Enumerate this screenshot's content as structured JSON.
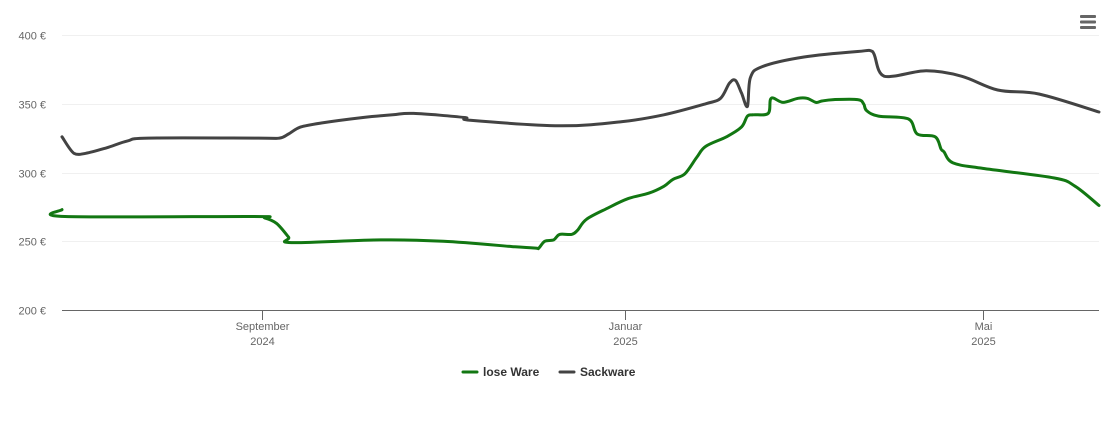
{
  "colors": {
    "lose": "#127712",
    "sack": "#434343"
  },
  "menu": {
    "icon": "hamburger-menu-icon"
  },
  "chart_data": {
    "type": "line",
    "xlim": [
      "2024-06-26",
      "2025-06-09"
    ],
    "ylim": [
      200,
      400
    ],
    "y_ticks": [
      {
        "value": 400,
        "label": "400 €"
      },
      {
        "value": 350,
        "label": "350 €"
      },
      {
        "value": 300,
        "label": "300 €"
      },
      {
        "value": 250,
        "label": "250 €"
      },
      {
        "value": 200,
        "label": "200 €"
      }
    ],
    "x_ticks": [
      {
        "date": "2024-09-01",
        "label": "September",
        "sub": "2024"
      },
      {
        "date": "2025-01-01",
        "label": "Januar",
        "sub": "2025"
      },
      {
        "date": "2025-05-01",
        "label": "Mai",
        "sub": "2025"
      }
    ],
    "grid": true,
    "legend_position": "bottom-center",
    "series": [
      {
        "name": "lose Ware",
        "color": "#127712",
        "points": [
          [
            "2024-06-26",
            273
          ],
          [
            "2024-06-27",
            268
          ],
          [
            "2024-08-29",
            268
          ],
          [
            "2024-09-02",
            267
          ],
          [
            "2024-09-06",
            263
          ],
          [
            "2024-09-10",
            253
          ],
          [
            "2024-09-11",
            249
          ],
          [
            "2024-10-11",
            251
          ],
          [
            "2024-11-01",
            250
          ],
          [
            "2024-11-25",
            246
          ],
          [
            "2024-12-02",
            245
          ],
          [
            "2024-12-03",
            245
          ],
          [
            "2024-12-05",
            250
          ],
          [
            "2024-12-08",
            251
          ],
          [
            "2024-12-10",
            255
          ],
          [
            "2024-12-14",
            255
          ],
          [
            "2024-12-16",
            258
          ],
          [
            "2024-12-19",
            266
          ],
          [
            "2024-12-26",
            274
          ],
          [
            "2025-01-02",
            281
          ],
          [
            "2025-01-09",
            285
          ],
          [
            "2025-01-14",
            290
          ],
          [
            "2025-01-17",
            295
          ],
          [
            "2025-01-21",
            299
          ],
          [
            "2025-01-25",
            311
          ],
          [
            "2025-01-28",
            319
          ],
          [
            "2025-02-04",
            326
          ],
          [
            "2025-02-09",
            333
          ],
          [
            "2025-02-11",
            341
          ],
          [
            "2025-02-13",
            342
          ],
          [
            "2025-02-18",
            343
          ],
          [
            "2025-02-19",
            354
          ],
          [
            "2025-02-23",
            351
          ],
          [
            "2025-02-28",
            354
          ],
          [
            "2025-03-03",
            354
          ],
          [
            "2025-03-06",
            351
          ],
          [
            "2025-03-08",
            352
          ],
          [
            "2025-03-12",
            353
          ],
          [
            "2025-03-20",
            353
          ],
          [
            "2025-03-22",
            350
          ],
          [
            "2025-03-23",
            345
          ],
          [
            "2025-03-27",
            341
          ],
          [
            "2025-04-06",
            339
          ],
          [
            "2025-04-09",
            328
          ],
          [
            "2025-04-15",
            326
          ],
          [
            "2025-04-17",
            317
          ],
          [
            "2025-04-18",
            315
          ],
          [
            "2025-04-21",
            307
          ],
          [
            "2025-05-01",
            303
          ],
          [
            "2025-05-25",
            296
          ],
          [
            "2025-06-01",
            290
          ],
          [
            "2025-06-09",
            276
          ]
        ]
      },
      {
        "name": "Sackware",
        "color": "#434343",
        "points": [
          [
            "2024-06-26",
            326
          ],
          [
            "2024-06-30",
            314
          ],
          [
            "2024-07-04",
            314
          ],
          [
            "2024-07-11",
            318
          ],
          [
            "2024-07-18",
            323
          ],
          [
            "2024-07-25",
            325
          ],
          [
            "2024-08-31",
            325
          ],
          [
            "2024-09-07",
            325
          ],
          [
            "2024-09-10",
            328
          ],
          [
            "2024-09-14",
            333
          ],
          [
            "2024-09-21",
            336
          ],
          [
            "2024-10-05",
            340
          ],
          [
            "2024-10-15",
            342
          ],
          [
            "2024-10-22",
            343
          ],
          [
            "2024-11-08",
            340
          ],
          [
            "2024-11-10",
            338
          ],
          [
            "2024-12-10",
            334
          ],
          [
            "2024-12-31",
            337
          ],
          [
            "2025-01-14",
            342
          ],
          [
            "2025-01-28",
            350
          ],
          [
            "2025-02-02",
            354
          ],
          [
            "2025-02-05",
            365
          ],
          [
            "2025-02-07",
            367
          ],
          [
            "2025-02-09",
            358
          ],
          [
            "2025-02-11",
            348
          ],
          [
            "2025-02-12",
            369
          ],
          [
            "2025-02-16",
            377
          ],
          [
            "2025-03-02",
            384
          ],
          [
            "2025-03-20",
            388
          ],
          [
            "2025-03-25",
            388
          ],
          [
            "2025-03-29",
            370
          ],
          [
            "2025-04-12",
            374
          ],
          [
            "2025-04-24",
            370
          ],
          [
            "2025-05-06",
            360
          ],
          [
            "2025-05-20",
            357
          ],
          [
            "2025-06-09",
            344
          ]
        ]
      }
    ]
  }
}
